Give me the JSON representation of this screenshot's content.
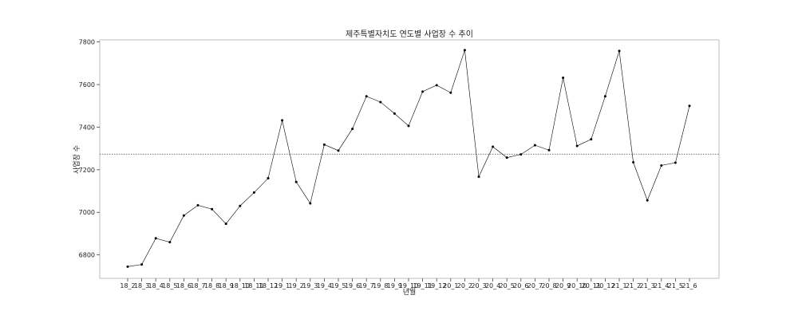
{
  "chart_data": {
    "type": "line",
    "title": "제주특별자치도 연도별 사업장 수 추이",
    "xlabel": "년월",
    "ylabel": "사업장 수",
    "ylim": [
      6690,
      7810
    ],
    "yticks": [
      6800,
      7000,
      7200,
      7400,
      7600,
      7800
    ],
    "grid": false,
    "legend": "none",
    "categories": [
      "18_2",
      "18_3",
      "18_4",
      "18_5",
      "18_6",
      "18_7",
      "18_8",
      "18_9",
      "18_10",
      "18_11",
      "18_12",
      "19_1",
      "19_2",
      "19_3",
      "19_4",
      "19_5",
      "19_6",
      "19_7",
      "19_8",
      "19_9",
      "19_10",
      "19_11",
      "19_12",
      "20_1",
      "20_2",
      "20_3",
      "20_4",
      "20_5",
      "20_6",
      "20_7",
      "20_8",
      "20_9",
      "20_10",
      "20_11",
      "20_12",
      "21_1",
      "21_2",
      "21_3",
      "21_4",
      "21_5",
      "21_6"
    ],
    "series": [
      {
        "values": [
          6745,
          6755,
          6878,
          6860,
          6985,
          7033,
          7015,
          6946,
          7030,
          7093,
          7160,
          7432,
          7143,
          7042,
          7318,
          7290,
          7392,
          7545,
          7518,
          7464,
          7406,
          7567,
          7597,
          7562,
          7762,
          7167,
          7308,
          7257,
          7272,
          7315,
          7292,
          7632,
          7312,
          7343,
          7545,
          7758,
          7235,
          7056,
          7220,
          7233,
          7500
        ]
      }
    ],
    "reference_line": {
      "y": 7273,
      "style": "dotted"
    },
    "colors": {
      "line": "#000000",
      "reference": "#666666",
      "frame": "#bfbfbf"
    }
  }
}
